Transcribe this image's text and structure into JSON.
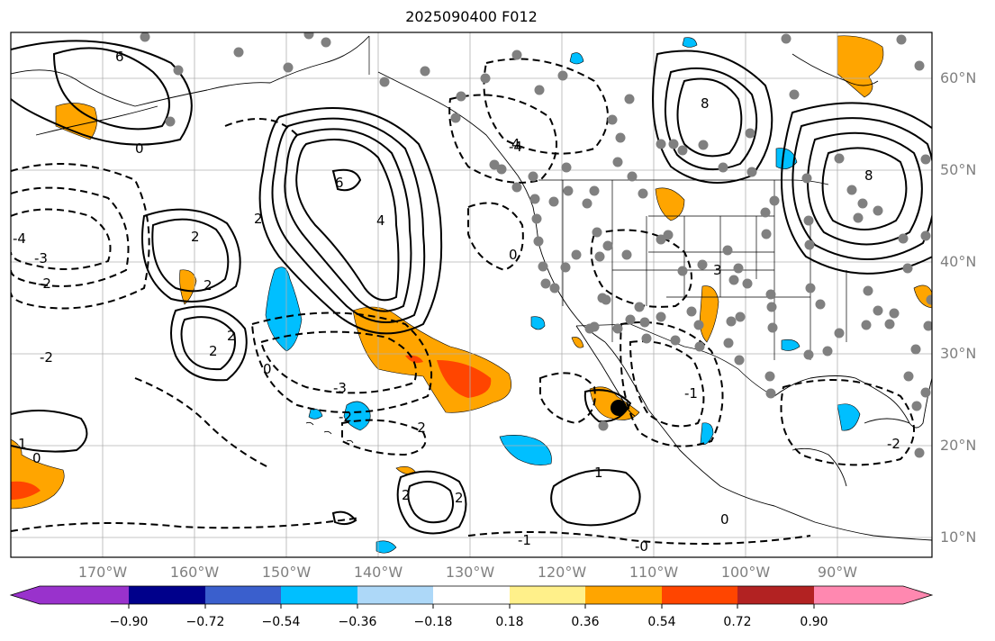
{
  "title": "2025090400 F012",
  "map": {
    "lat_labels": [
      "60°N",
      "50°N",
      "40°N",
      "30°N",
      "20°N",
      "10°N"
    ],
    "lon_labels": [
      "170°W",
      "160°W",
      "150°W",
      "140°W",
      "130°W",
      "120°W",
      "110°W",
      "100°W",
      "90°W"
    ],
    "contour_labels": [
      "6",
      "6",
      "8",
      "8",
      "4",
      "4",
      "2",
      "2",
      "2",
      "2",
      "2",
      "2",
      "1",
      "1",
      "0",
      "0",
      "0",
      "0",
      "0",
      "-2",
      "-2",
      "-2",
      "-2",
      "-2",
      "-3",
      "-3",
      "-4",
      "-4",
      "-1",
      "-1",
      "-0",
      "2",
      "3"
    ],
    "colors": {
      "positive_contour": "#000000",
      "negative_contour": "#000000",
      "station_marker": "#808080",
      "highlight_marker": "#000000",
      "grid": "#b0b0b0",
      "coastline": "#000000"
    }
  },
  "colorbar": {
    "tick_labels": [
      "−0.90",
      "−0.72",
      "−0.54",
      "−0.36",
      "−0.18",
      "0.18",
      "0.36",
      "0.54",
      "0.72",
      "0.90"
    ],
    "colors": [
      "#9932cc",
      "#00008b",
      "#3a5fcd",
      "#00bfff",
      "#add8f8",
      "#ffffff",
      "#fff08a",
      "#ffa500",
      "#ff4500",
      "#b22222",
      "#ff88b0"
    ]
  }
}
